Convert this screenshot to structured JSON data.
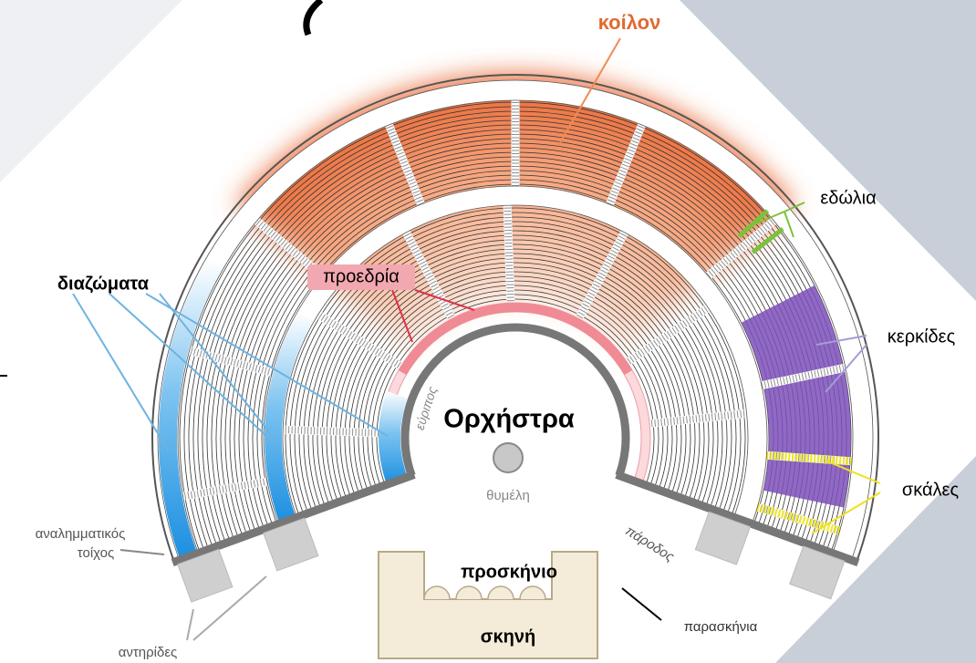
{
  "diagram": {
    "labels": {
      "koilon": "κοίλον",
      "edolia": "εδώλια",
      "diazomata": "διαζώματα",
      "proedria": "προεδρία",
      "kerkides": "κερκίδες",
      "orchestra": "Ορχήστρα",
      "evripos": "εύριπος",
      "thymeli": "θυμέλη",
      "skales": "σκάλες",
      "parodos": "πάροδος",
      "analimmatikos": [
        "αναλημματικός",
        "τοίχος"
      ],
      "proskinio": "προσκήνιο",
      "skini": "σκηνή",
      "paraskinia": "παρασκήνια",
      "antirides": "αντηρίδες"
    }
  }
}
